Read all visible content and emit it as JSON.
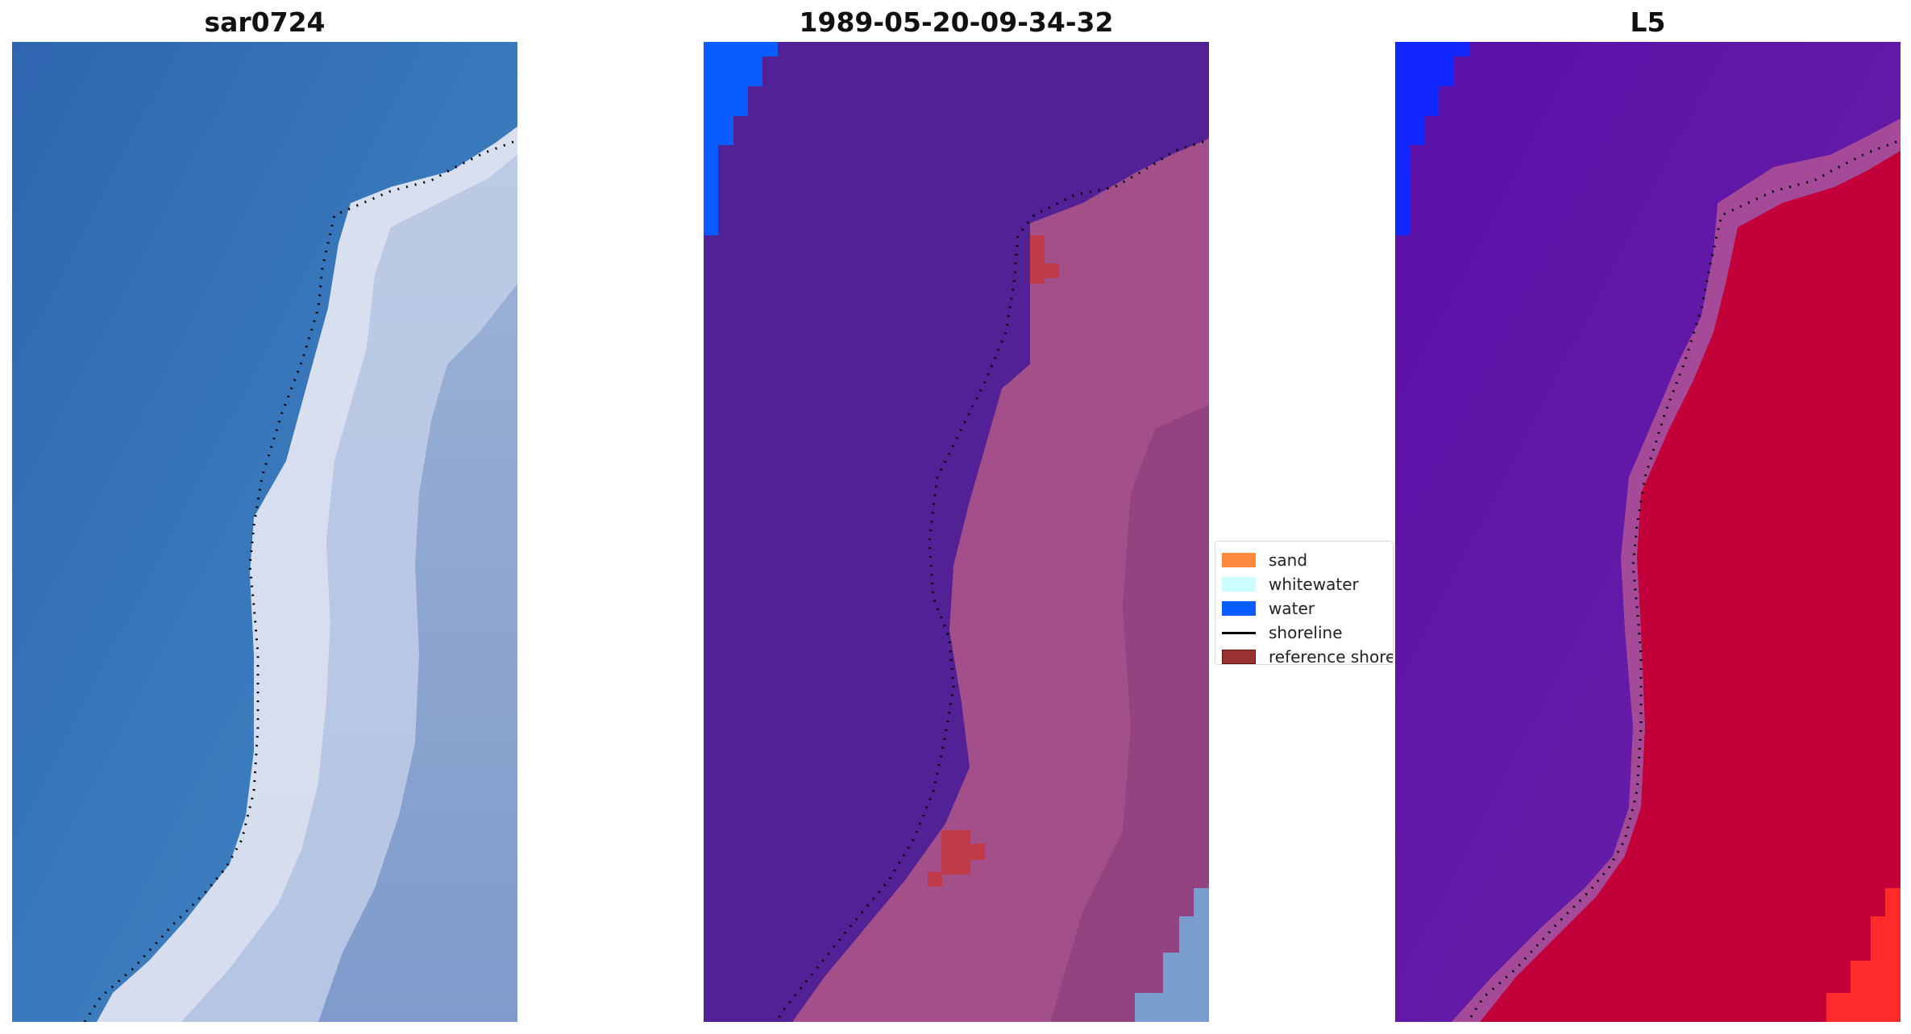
{
  "panels": [
    {
      "title": "sar0724",
      "content": "rgb-satellite-image"
    },
    {
      "title": "1989-05-20-09-34-32",
      "content": "classified-image"
    },
    {
      "title": "L5",
      "content": "mndwi-image"
    }
  ],
  "legend": {
    "items": [
      {
        "label": "sand",
        "kind": "patch",
        "color": "#ff8a3d"
      },
      {
        "label": "whitewater",
        "kind": "patch",
        "color": "#ccffff"
      },
      {
        "label": "water",
        "kind": "patch",
        "color": "#0a5cff"
      },
      {
        "label": "shoreline",
        "kind": "line",
        "color": "#000000"
      },
      {
        "label": "reference shoreline buffer",
        "kind": "patch",
        "color": "#9b3030"
      }
    ]
  },
  "colors": {
    "ocean_rgb": "#3a76b8",
    "surf_rgb": "#d8dff0",
    "land_rgb": "#7f9ccb",
    "classified_water": "#522196",
    "classified_land": "#a3508a",
    "classified_blue": "#0a5cff",
    "classified_buffer": "#c03a4a",
    "mndwi_water": "#5b0da6",
    "mndwi_land": "#c2003a",
    "mndwi_blue": "#1226ff",
    "mndwi_bright": "#ff2a2a"
  }
}
